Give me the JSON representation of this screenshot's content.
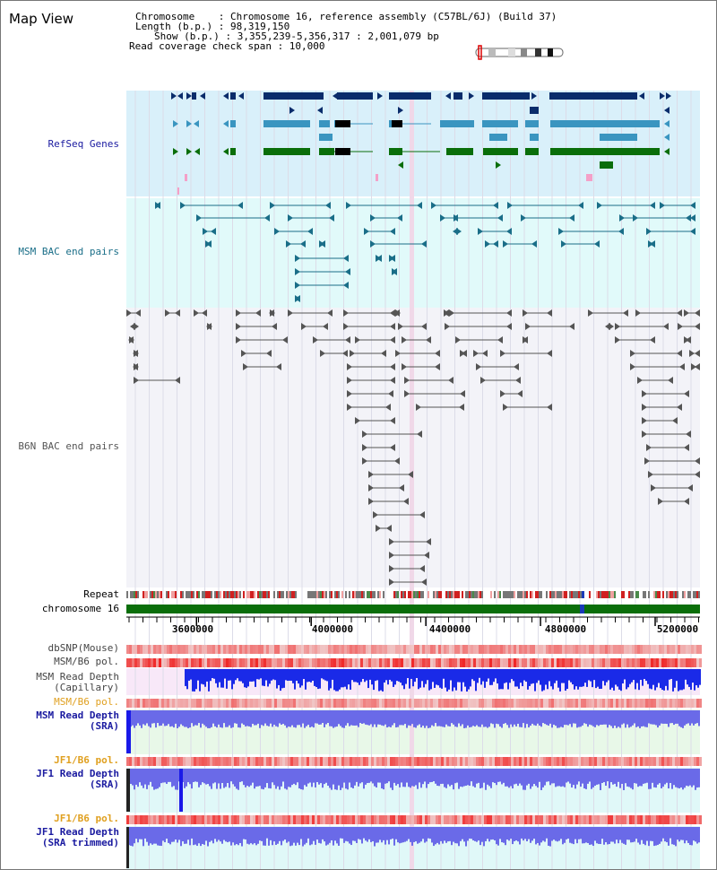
{
  "title": "Map View",
  "info": {
    "chromosome": "Chromosome    : Chromosome 16, reference assembly (C57BL/6J) (Build 37)",
    "length": "Length (b.p.) : 98,319,150",
    "show": "Show (b.p.) : 3,355,239-5,356,317 : 2,001,079 bp",
    "coverage": "Read coverage check span : 10,000"
  },
  "tracks": {
    "refseq": "RefSeq Genes",
    "msm_bac": "MSM BAC end pairs",
    "b6n_bac": "B6N BAC end pairs",
    "repeat": "Repeat",
    "chromosome": "chromosome 16",
    "dbsnp": "dbSNP(Mouse)",
    "msm_b6_pol_1": "MSM/B6 pol.",
    "msm_depth_cap_1": "MSM Read Depth",
    "msm_depth_cap_2": "(Capillary)",
    "msm_b6_pol_2": "MSM/B6 pol.",
    "msm_depth_sra_1": "MSM Read Depth",
    "msm_depth_sra_2": "(SRA)",
    "jf1_b6_pol_1": "JF1/B6 pol.",
    "jf1_depth_sra_1": "JF1 Read Depth",
    "jf1_depth_sra_2": "(SRA)",
    "jf1_b6_pol_2": "JF1/B6 pol.",
    "jf1_depth_trim_1": "JF1 Read Depth",
    "jf1_depth_trim_2": "(SRA trimmed)"
  },
  "axis": {
    "ticks": [
      "3600000",
      "4000000",
      "4400000",
      "4800000",
      "5200000"
    ],
    "tick_values": [
      3600000,
      4000000,
      4400000,
      4800000,
      5200000
    ],
    "start": 3355239,
    "end": 5356317
  },
  "colors": {
    "refseq_bg": "#d9f0fa",
    "bac_bg": "#e1fafa",
    "gene_dark": "#0a2c6b",
    "gene_mid": "#3a95c0",
    "gene_green": "#0a6e0a",
    "msm_bac": "#1a6e88",
    "b6n_bac": "#555555",
    "chrom": "#0a6e0a",
    "pol_red": "#e83030",
    "depth_blue": "#2a2ae0"
  }
}
